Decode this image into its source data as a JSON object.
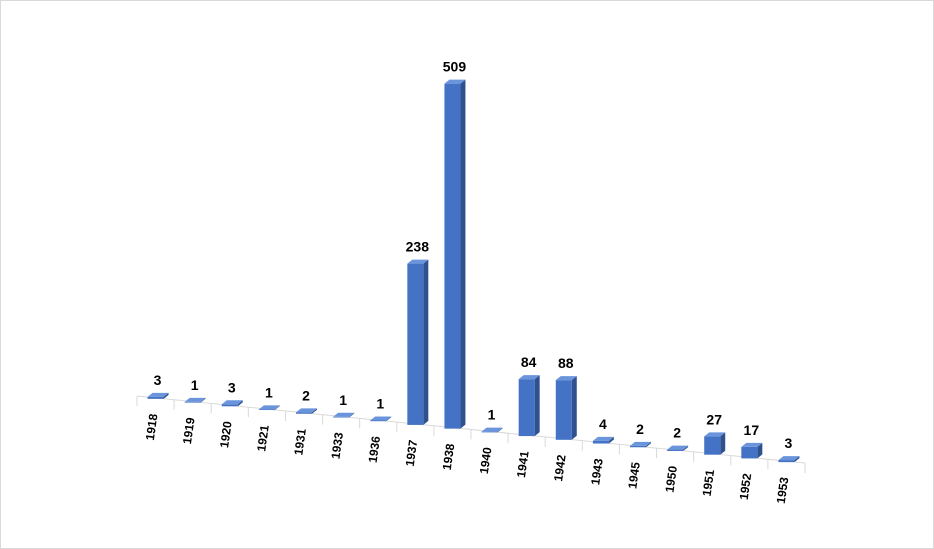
{
  "chart_data": {
    "type": "bar3d",
    "categories": [
      "1918",
      "1919",
      "1920",
      "1921",
      "1931",
      "1933",
      "1936",
      "1937",
      "1938",
      "1940",
      "1941",
      "1942",
      "1943",
      "1945",
      "1950",
      "1951",
      "1952",
      "1953"
    ],
    "values": [
      3,
      1,
      3,
      1,
      2,
      1,
      1,
      238,
      509,
      1,
      84,
      88,
      4,
      2,
      2,
      27,
      17,
      3
    ],
    "color": "#4472c4"
  }
}
